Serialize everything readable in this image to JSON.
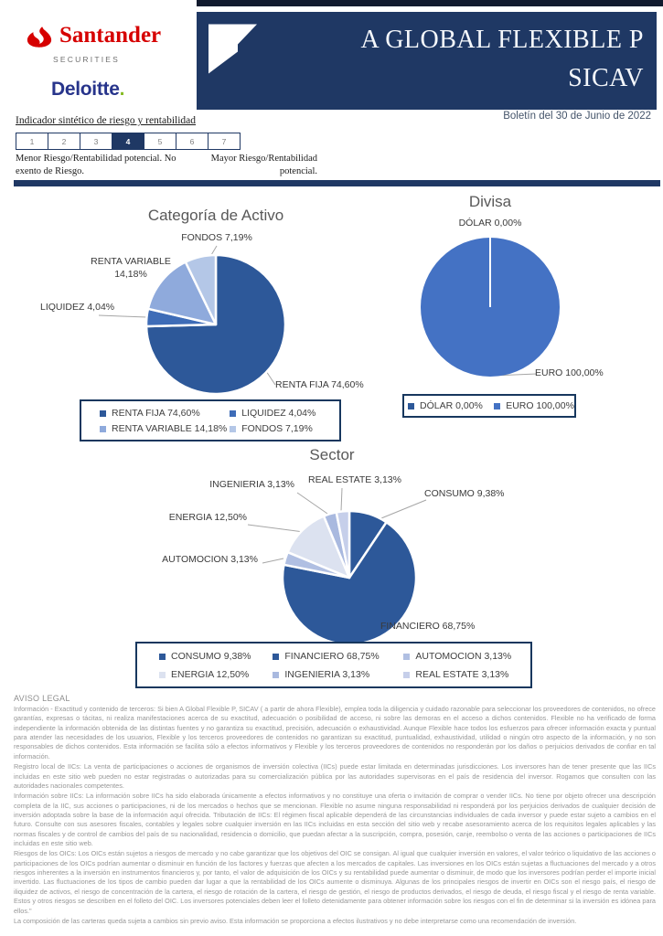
{
  "header": {
    "brand_primary": "Santander",
    "brand_primary_sub": "SECURITIES",
    "brand_secondary": "Deloitte",
    "brand_secondary_dot": ".",
    "banner_title_line1": "A GLOBAL FLEXIBLE P",
    "banner_title_line2": "SICAV",
    "bulletin": "Boletín del 30 de Junio de 2022"
  },
  "risk_indicator": {
    "title": "Indicador sintético de riesgo y rentabilidad",
    "levels": [
      "1",
      "2",
      "3",
      "4",
      "5",
      "6",
      "7"
    ],
    "active_level": "4",
    "left_caption": "Menor Riesgo/Rentabilidad potencial. No exento de Riesgo.",
    "right_caption": "Mayor Riesgo/Rentabilidad potencial."
  },
  "chart_data": [
    {
      "type": "pie",
      "title": "Categoría de Activo",
      "labels": [
        "RENTA FIJA",
        "LIQUIDEZ",
        "RENTA VARIABLE",
        "FONDOS"
      ],
      "values": [
        74.6,
        4.04,
        14.18,
        7.19
      ],
      "display_labels": [
        "RENTA FIJA 74,60%",
        "LIQUIDEZ 4,04%",
        "RENTA VARIABLE 14,18%",
        "FONDOS 7,19%"
      ],
      "colors": [
        "#2d5899",
        "#3e6cb7",
        "#8faadc",
        "#b4c7e7"
      ],
      "start_angle_deg": 0,
      "direction": "clockwise",
      "legend_position": "bottom"
    },
    {
      "type": "pie",
      "title": "Divisa",
      "labels": [
        "DÓLAR",
        "EURO"
      ],
      "values": [
        0.0,
        100.0
      ],
      "display_labels": [
        "DÓLAR 0,00%",
        "EURO 100,00%"
      ],
      "colors": [
        "#2d5899",
        "#4472c4"
      ],
      "start_angle_deg": 0,
      "direction": "clockwise",
      "legend_position": "bottom"
    },
    {
      "type": "pie",
      "title": "Sector",
      "labels": [
        "CONSUMO",
        "FINANCIERO",
        "AUTOMOCION",
        "ENERGIA",
        "INGENIERIA",
        "REAL ESTATE"
      ],
      "values": [
        9.38,
        68.75,
        3.13,
        12.5,
        3.13,
        3.13
      ],
      "display_labels": [
        "CONSUMO 9,38%",
        "FINANCIERO 68,75%",
        "AUTOMOCION 3,13%",
        "ENERGIA 12,50%",
        "INGENIERIA 3,13%",
        "REAL ESTATE 3,13%"
      ],
      "colors": [
        "#2d5899",
        "#2d5899",
        "#b0bfe2",
        "#dce2f0",
        "#a9b9df",
        "#c6cfea"
      ],
      "start_angle_deg": 0,
      "direction": "clockwise",
      "legend_position": "bottom"
    }
  ],
  "legal": {
    "heading": "AVISO LEGAL",
    "paragraphs": [
      "Información - Exactitud y contenido de terceros: Si bien A Global Flexible P, SICAV ( a partir de ahora Flexible), emplea toda la diligencia y cuidado razonable para seleccionar los proveedores de contenidos, no ofrece garantías, expresas o tácitas, ni realiza manifestaciones acerca de su exactitud, adecuación o posibilidad de acceso, ni sobre las demoras en el acceso a dichos contenidos. Flexible no ha verificado de forma independiente la información obtenida de las distintas fuentes y no garantiza su exactitud, precisión, adecuación o exhaustividad. Aunque Flexible hace todos los esfuerzos para ofrecer información exacta y puntual para atender las necesidades de los usuarios, Flexible y los terceros proveedores de contenidos no garantizan su exactitud, puntualidad, exhaustividad, utilidad o ningún otro aspecto de la información, y no son responsables de dichos contenidos. Esta información se facilita sólo a efectos informativos y Flexible y los terceros proveedores de contenidos no responderán por los daños o perjuicios derivados de confiar en tal información.",
      "Registro local de IICs: La venta de participaciones o acciones de organismos de inversión colectiva (IICs) puede estar limitada en determinadas jurisdicciones. Los inversores han de tener presente que las IICs incluidas en este sitio web pueden no estar registradas o autorizadas para su comercialización pública por las autoridades supervisoras en el país de residencia del inversor. Rogamos que consulten con las autoridades nacionales competentes.",
      "Información sobre IICs: La información sobre IICs ha sido elaborada únicamente a efectos informativos y no constituye una oferta o invitación de comprar o vender IICs. No tiene por objeto ofrecer una descripción completa de la IIC, sus acciones o participaciones, ni de los mercados o hechos que se mencionan. Flexible no asume ninguna responsabilidad ni responderá por los perjuicios derivados de cualquier decisión de inversión adoptada sobre la base de la información aquí ofrecida. Tributación de IICs: El régimen fiscal aplicable dependerá de las circunstancias individuales de cada inversor y puede estar sujeto a cambios en el futuro. Consulte con sus asesores fiscales, contables y legales sobre cualquier inversión en las IICs incluidas en esta sección del sitio web y recabe asesoramiento acerca de los requisitos legales aplicables y las normas fiscales y de control de cambios del país de su nacionalidad, residencia o domicilio, que puedan afectar a la suscripción, compra, posesión, canje, reembolso o venta de las acciones o participaciones de IICs incluidas en este sitio web.",
      "Riesgos de los OICs: Los OICs están sujetos a riesgos de mercado y no cabe garantizar que los objetivos del OIC se consigan. Al igual que cualquier inversión en valores, el valor teórico o liquidativo de las acciones o participaciones de los OICs podrían aumentar o disminuir en función de los factores y fuerzas que afecten a los mercados de capitales. Las inversiones en los OICs están sujetas a fluctuaciones del mercado y a otros riesgos inherentes a la inversión en instrumentos financieros y, por tanto, el valor de adquisición de los OICs y su rentabilidad puede aumentar o disminuir, de modo que los inversores podrían perder el importe inicial invertido. Las fluctuaciones de los tipos de cambio pueden dar lugar a que la rentabilidad de los OICs aumente o disminuya. Algunas de los principales riesgos de invertir en OICs son el riesgo país, el riesgo de iliquidez de activos, el riesgo de concentración de la cartera, el riesgo de rotación de la cartera, el riesgo de gestión, el riesgo de productos derivados, el riesgo de deuda, el riesgo fiscal y el riesgo de renta variable. Estos y otros riesgos se describen en el folleto del OIC. Los inversores potenciales deben leer el folleto detenidamente para obtener información sobre los riesgos con el fin de determinar si la inversión es idónea para ellos.\"",
      "La composición de las carteras queda  sujeta a cambios sin previo aviso. Esta información se proporciona a efectos ilustrativos y no debe interpretarse como una recomendación de inversión."
    ]
  },
  "colors": {
    "banner_navy": "#1f3864",
    "santander_red": "#d60000",
    "deloitte_blue": "#27348b",
    "deloitte_green": "#86bc25",
    "legend_border": "#17375e",
    "chart_title_gray": "#595959",
    "legal_gray": "#979797"
  }
}
